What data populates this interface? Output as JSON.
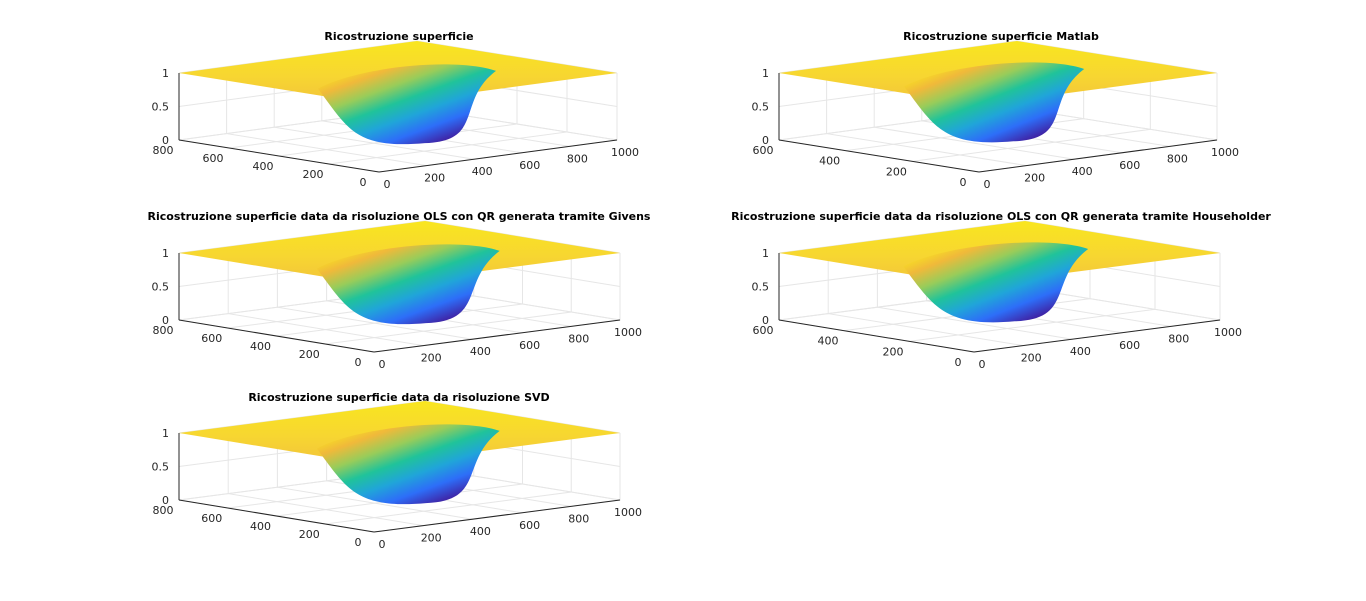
{
  "figure": {
    "background": "#ffffff",
    "axis_color": "#262626",
    "grid_color": "#e6e6e6"
  },
  "chart_data": [
    {
      "type": "surface",
      "title": "Ricostruzione superficie",
      "xlabel": "",
      "ylabel": "",
      "zlabel": "",
      "xlim": [
        0,
        1000
      ],
      "ylim": [
        0,
        800
      ],
      "zlim": [
        0,
        1
      ],
      "x_ticks": [
        "0",
        "200",
        "400",
        "600",
        "800",
        "1000"
      ],
      "y_ticks": [
        "0",
        "200",
        "400",
        "600",
        "800"
      ],
      "z_ticks": [
        "0",
        "0.5",
        "1"
      ],
      "surface": {
        "plateau": 1,
        "basin_min": 0,
        "basin_center": [
          500,
          350
        ],
        "basin_radius": [
          330,
          280
        ]
      },
      "colormap": [
        "#3e26a8",
        "#2d6ef8",
        "#20a5d9",
        "#20c39a",
        "#98cc5a",
        "#f0b93a",
        "#f9e61f"
      ]
    },
    {
      "type": "surface",
      "title": "Ricostruzione superficie Matlab",
      "xlabel": "",
      "ylabel": "",
      "zlabel": "",
      "xlim": [
        0,
        1000
      ],
      "ylim": [
        0,
        600
      ],
      "zlim": [
        0,
        1
      ],
      "x_ticks": [
        "0",
        "200",
        "400",
        "600",
        "800",
        "1000"
      ],
      "y_ticks": [
        "0",
        "200",
        "400",
        "600"
      ],
      "z_ticks": [
        "0",
        "0.5",
        "1"
      ],
      "surface": {
        "plateau": 1,
        "basin_min": 0,
        "basin_center": [
          500,
          300
        ],
        "basin_radius": [
          330,
          230
        ]
      },
      "colormap": [
        "#3e26a8",
        "#2d6ef8",
        "#20a5d9",
        "#20c39a",
        "#98cc5a",
        "#f0b93a",
        "#f9e61f"
      ]
    },
    {
      "type": "surface",
      "title": "Ricostruzione superficie data da risoluzione OLS con QR generata tramite Givens",
      "xlabel": "",
      "ylabel": "",
      "zlabel": "",
      "xlim": [
        0,
        1000
      ],
      "ylim": [
        0,
        800
      ],
      "zlim": [
        0,
        1
      ],
      "x_ticks": [
        "0",
        "200",
        "400",
        "600",
        "800",
        "1000"
      ],
      "y_ticks": [
        "0",
        "200",
        "400",
        "600",
        "800"
      ],
      "z_ticks": [
        "0",
        "0.5",
        "1"
      ],
      "surface": {
        "plateau": 1,
        "basin_min": 0,
        "basin_center": [
          500,
          350
        ],
        "basin_radius": [
          330,
          280
        ]
      },
      "colormap": [
        "#3e26a8",
        "#2d6ef8",
        "#20a5d9",
        "#20c39a",
        "#98cc5a",
        "#f0b93a",
        "#f9e61f"
      ]
    },
    {
      "type": "surface",
      "title": "Ricostruzione superficie data da risoluzione OLS con QR generata tramite Householder",
      "xlabel": "",
      "ylabel": "",
      "zlabel": "",
      "xlim": [
        0,
        1000
      ],
      "ylim": [
        0,
        600
      ],
      "zlim": [
        0,
        1
      ],
      "x_ticks": [
        "0",
        "200",
        "400",
        "600",
        "800",
        "1000"
      ],
      "y_ticks": [
        "0",
        "200",
        "400",
        "600"
      ],
      "z_ticks": [
        "0",
        "0.5",
        "1"
      ],
      "surface": {
        "plateau": 1,
        "basin_min": 0,
        "basin_center": [
          500,
          300
        ],
        "basin_radius": [
          330,
          230
        ]
      },
      "colormap": [
        "#3e26a8",
        "#2d6ef8",
        "#20a5d9",
        "#20c39a",
        "#98cc5a",
        "#f0b93a",
        "#f9e61f"
      ]
    },
    {
      "type": "surface",
      "title": "Ricostruzione superficie data da risoluzione SVD",
      "xlabel": "",
      "ylabel": "",
      "zlabel": "",
      "xlim": [
        0,
        1000
      ],
      "ylim": [
        0,
        800
      ],
      "zlim": [
        0,
        1
      ],
      "x_ticks": [
        "0",
        "200",
        "400",
        "600",
        "800",
        "1000"
      ],
      "y_ticks": [
        "0",
        "200",
        "400",
        "600",
        "800"
      ],
      "z_ticks": [
        "0",
        "0.5",
        "1"
      ],
      "surface": {
        "plateau": 1,
        "basin_min": 0,
        "basin_center": [
          500,
          350
        ],
        "basin_radius": [
          330,
          280
        ]
      },
      "colormap": [
        "#3e26a8",
        "#2d6ef8",
        "#20a5d9",
        "#20c39a",
        "#98cc5a",
        "#f0b93a",
        "#f9e61f"
      ]
    }
  ]
}
